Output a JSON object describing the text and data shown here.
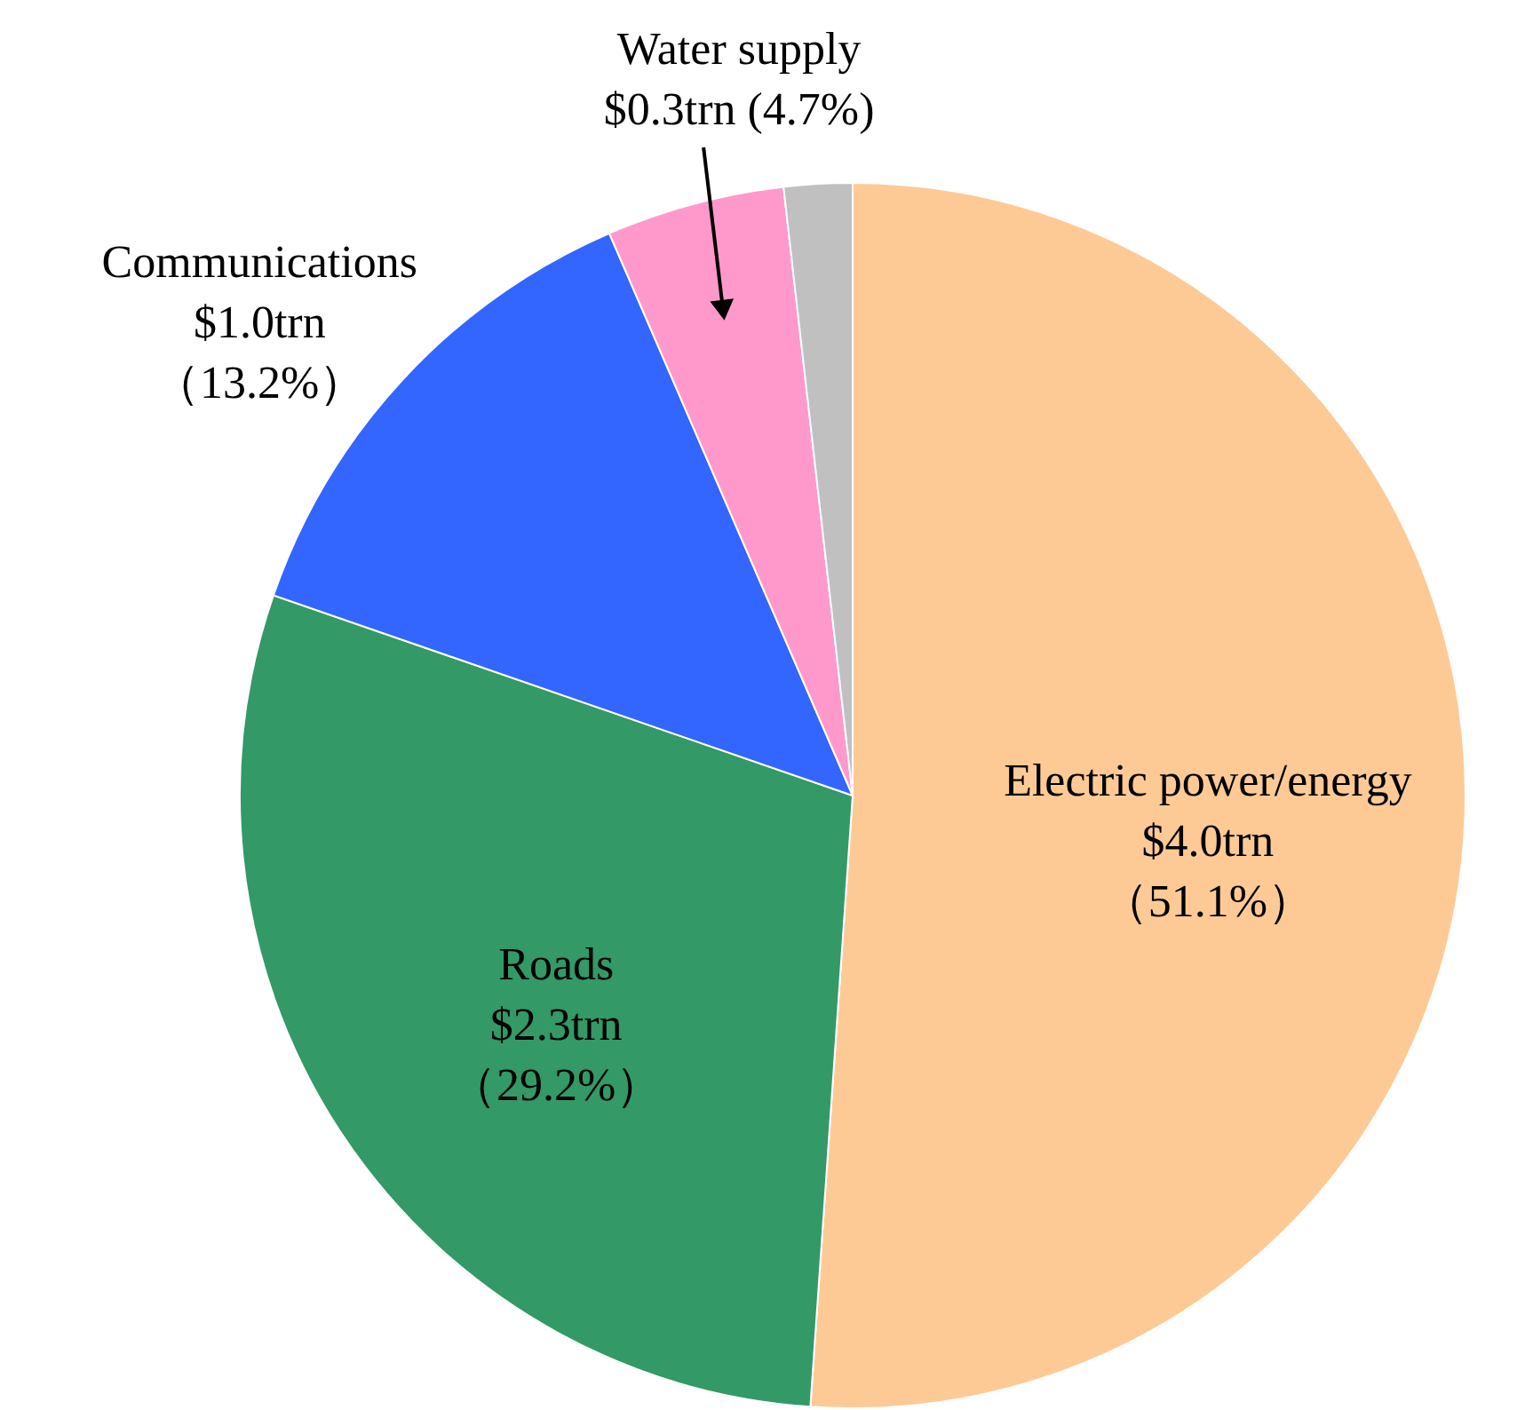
{
  "chart_data": {
    "type": "pie",
    "categories": [
      "Electric power/energy",
      "Roads",
      "Communications",
      "Water supply",
      null
    ],
    "values": [
      51.1,
      29.2,
      13.2,
      4.7,
      1.8
    ],
    "value_labels": [
      "$4.0trn\n（51.1%）",
      "$2.3trn\n（29.2%）",
      "$1.0trn\n（13.2%）",
      "$0.3trn (4.7%)",
      null
    ],
    "colors": [
      "#fdca96",
      "#339966",
      "#3366ff",
      "#ff99cc",
      "#c0c0c0"
    ]
  }
}
